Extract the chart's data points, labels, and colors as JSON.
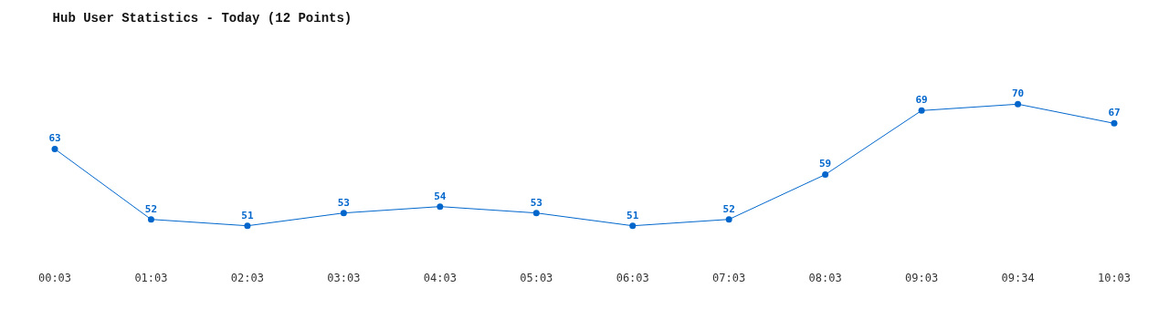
{
  "chart_data": {
    "type": "line",
    "title": "Hub User Statistics - Today (12 Points)",
    "categories": [
      "00:03",
      "01:03",
      "02:03",
      "03:03",
      "04:03",
      "05:03",
      "06:03",
      "07:03",
      "08:03",
      "09:03",
      "09:34",
      "10:03"
    ],
    "series": [
      {
        "color": "#0066cc",
        "values": [
          63,
          52,
          51,
          53,
          54,
          53,
          51,
          52,
          59,
          69,
          70,
          67
        ]
      }
    ],
    "data_labels": true,
    "marker": "circle"
  }
}
